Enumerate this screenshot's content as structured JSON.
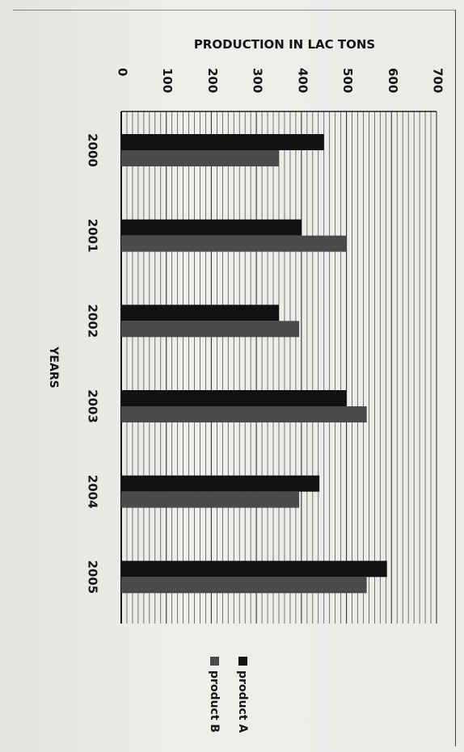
{
  "chart_data": {
    "type": "bar",
    "orientation": "rotated-90-clockwise",
    "title": "PRODUCTION IN LAC TONS",
    "xlabel": "YEARS",
    "ylabel": "",
    "categories": [
      "2000",
      "2001",
      "2002",
      "2003",
      "2004",
      "2005"
    ],
    "series": [
      {
        "name": "product A",
        "values": [
          450,
          400,
          350,
          500,
          440,
          590
        ]
      },
      {
        "name": "product B",
        "values": [
          350,
          500,
          395,
          545,
          395,
          545
        ]
      }
    ],
    "ylim": [
      0,
      700
    ],
    "yticks": [
      0,
      100,
      200,
      300,
      400,
      500,
      600,
      700
    ],
    "grid": true,
    "legend_position": "right",
    "colors": {
      "product A": "#111111",
      "product B": "#4a4a4a"
    }
  }
}
